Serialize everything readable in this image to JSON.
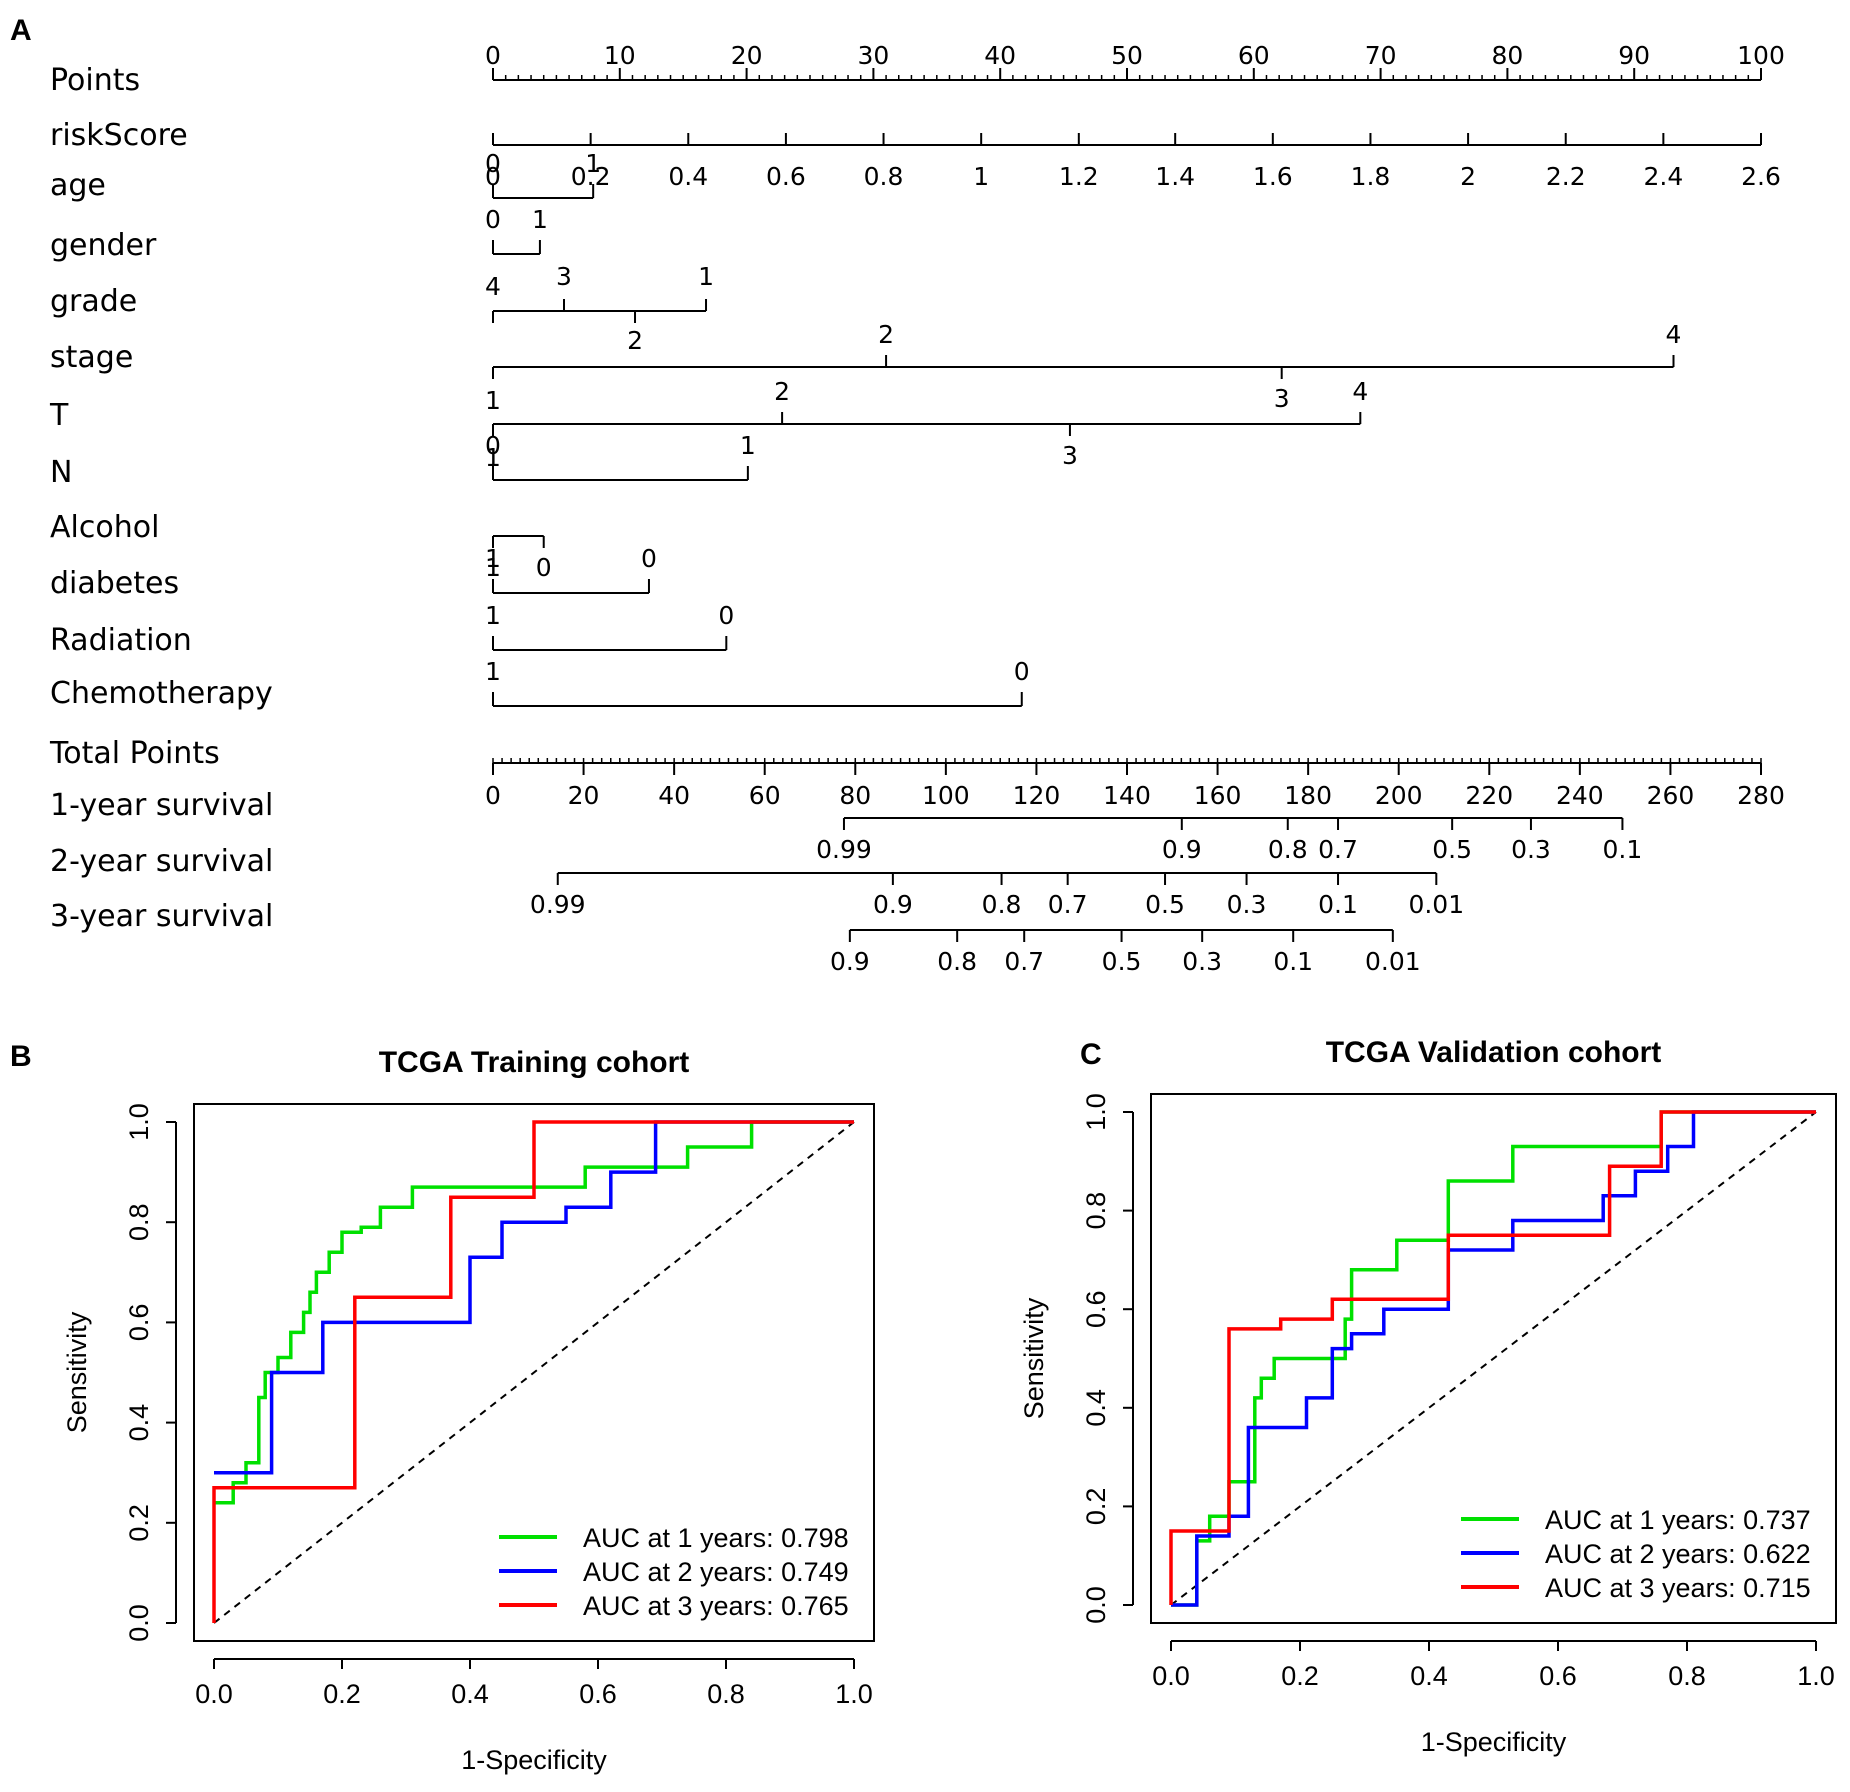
{
  "panels": {
    "a": "A",
    "b": "B",
    "c": "C"
  },
  "chart_data": [
    {
      "type": "nomogram",
      "panel": "A",
      "rows": [
        {
          "key": "points",
          "label": "Points",
          "axis": "points",
          "ticks": [
            {
              "label": "0",
              "points": 0
            },
            {
              "label": "10",
              "points": 10
            },
            {
              "label": "20",
              "points": 20
            },
            {
              "label": "30",
              "points": 30
            },
            {
              "label": "40",
              "points": 40
            },
            {
              "label": "50",
              "points": 50
            },
            {
              "label": "60",
              "points": 60
            },
            {
              "label": "70",
              "points": 70
            },
            {
              "label": "80",
              "points": 80
            },
            {
              "label": "90",
              "points": 90
            },
            {
              "label": "100",
              "points": 100
            }
          ]
        },
        {
          "key": "riskScore",
          "label": "riskScore",
          "ticks": [
            {
              "label": "0",
              "points": 0
            },
            {
              "label": "0.2",
              "points": 7.7
            },
            {
              "label": "0.4",
              "points": 15.4
            },
            {
              "label": "0.6",
              "points": 23.1
            },
            {
              "label": "0.8",
              "points": 30.8
            },
            {
              "label": "1",
              "points": 38.5
            },
            {
              "label": "1.2",
              "points": 46.2
            },
            {
              "label": "1.4",
              "points": 53.8
            },
            {
              "label": "1.6",
              "points": 61.5
            },
            {
              "label": "1.8",
              "points": 69.2
            },
            {
              "label": "2",
              "points": 76.9
            },
            {
              "label": "2.2",
              "points": 84.6
            },
            {
              "label": "2.4",
              "points": 92.3
            },
            {
              "label": "2.6",
              "points": 100
            }
          ]
        },
        {
          "key": "age",
          "label": "age",
          "ticks": [
            {
              "label": "0",
              "points": 0
            },
            {
              "label": "1",
              "points": 7.9
            }
          ]
        },
        {
          "key": "gender",
          "label": "gender",
          "ticks": [
            {
              "label": "0",
              "points": 0
            },
            {
              "label": "1",
              "points": 3.7
            }
          ]
        },
        {
          "key": "grade",
          "label": "grade",
          "ticks": [
            {
              "label": "4",
              "points": 0
            },
            {
              "label": "3",
              "points": 5.6
            },
            {
              "label": "2",
              "points": 11.2
            },
            {
              "label": "1",
              "points": 16.8
            }
          ]
        },
        {
          "key": "stage",
          "label": "stage",
          "ticks": [
            {
              "label": "1",
              "points": 0
            },
            {
              "label": "2",
              "points": 31.0
            },
            {
              "label": "3",
              "points": 62.2
            },
            {
              "label": "4",
              "points": 93.1
            }
          ]
        },
        {
          "key": "T",
          "label": "T",
          "ticks": [
            {
              "label": "1",
              "points": 0
            },
            {
              "label": "2",
              "points": 22.8
            },
            {
              "label": "3",
              "points": 45.5
            },
            {
              "label": "4",
              "points": 68.4
            }
          ]
        },
        {
          "key": "N",
          "label": "N",
          "ticks": [
            {
              "label": "0",
              "points": 0
            },
            {
              "label": "1",
              "points": 20.1
            }
          ]
        },
        {
          "key": "Alcohol",
          "label": "Alcohol",
          "ticks": [
            {
              "label": "1",
              "points": 0
            },
            {
              "label": "0",
              "points": 4.0
            }
          ]
        },
        {
          "key": "diabetes",
          "label": "diabetes",
          "ticks": [
            {
              "label": "1",
              "points": 0
            },
            {
              "label": "0",
              "points": 12.3
            }
          ]
        },
        {
          "key": "Radiation",
          "label": "Radiation",
          "ticks": [
            {
              "label": "1",
              "points": 0
            },
            {
              "label": "0",
              "points": 18.4
            }
          ]
        },
        {
          "key": "Chemotherapy",
          "label": "Chemotherapy",
          "ticks": [
            {
              "label": "1",
              "points": 0
            },
            {
              "label": "0",
              "points": 41.7
            }
          ]
        },
        {
          "key": "total",
          "label": "Total Points",
          "axis": "total",
          "ticks": [
            {
              "label": "0",
              "total": 0
            },
            {
              "label": "20",
              "total": 20
            },
            {
              "label": "40",
              "total": 40
            },
            {
              "label": "60",
              "total": 60
            },
            {
              "label": "80",
              "total": 80
            },
            {
              "label": "100",
              "total": 100
            },
            {
              "label": "120",
              "total": 120
            },
            {
              "label": "140",
              "total": 140
            },
            {
              "label": "160",
              "total": 160
            },
            {
              "label": "180",
              "total": 180
            },
            {
              "label": "200",
              "total": 200
            },
            {
              "label": "220",
              "total": 220
            },
            {
              "label": "240",
              "total": 240
            },
            {
              "label": "260",
              "total": 260
            },
            {
              "label": "280",
              "total": 280
            }
          ]
        },
        {
          "key": "s1",
          "label": "1-year survival",
          "ticks": [
            {
              "label": "0.99",
              "total": 77.5
            },
            {
              "label": "0.9",
              "total": 152.1
            },
            {
              "label": "0.8",
              "total": 175.5
            },
            {
              "label": "0.7",
              "total": 186.6
            },
            {
              "label": "0.5",
              "total": 211.8
            },
            {
              "label": "0.3",
              "total": 229.2
            },
            {
              "label": "0.1",
              "total": 249.4
            }
          ]
        },
        {
          "key": "s2",
          "label": "2-year survival",
          "ticks": [
            {
              "label": "0.99",
              "total": 14.3
            },
            {
              "label": "0.9",
              "total": 88.3
            },
            {
              "label": "0.8",
              "total": 112.3
            },
            {
              "label": "0.7",
              "total": 126.9
            },
            {
              "label": "0.5",
              "total": 148.4
            },
            {
              "label": "0.3",
              "total": 166.4
            },
            {
              "label": "0.1",
              "total": 186.6
            },
            {
              "label": "0.01",
              "total": 208.3
            }
          ]
        },
        {
          "key": "s3",
          "label": "3-year survival",
          "ticks": [
            {
              "label": "0.9",
              "total": 78.8
            },
            {
              "label": "0.8",
              "total": 102.5
            },
            {
              "label": "0.7",
              "total": 117.3
            },
            {
              "label": "0.5",
              "total": 138.8
            },
            {
              "label": "0.3",
              "total": 156.6
            },
            {
              "label": "0.1",
              "total": 176.7
            },
            {
              "label": "0.01",
              "total": 198.7
            }
          ]
        }
      ]
    },
    {
      "type": "line",
      "panel": "B",
      "title": "TCGA  Training  cohort",
      "xlabel": "1-Specificity",
      "ylabel": "Sensitivity",
      "xlim": [
        0,
        1
      ],
      "ylim": [
        0,
        1
      ],
      "xticks": [
        "0.0",
        "0.2",
        "0.4",
        "0.6",
        "0.8",
        "1.0"
      ],
      "yticks": [
        "0.0",
        "0.2",
        "0.4",
        "0.6",
        "0.8",
        "1.0"
      ],
      "legend_position": "bottom-right",
      "diagonal": true,
      "series": [
        {
          "name": "AUC at 1 years: 0.798",
          "color": "#00e000",
          "x": [
            0,
            0.03,
            0.03,
            0.05,
            0.05,
            0.07,
            0.07,
            0.08,
            0.08,
            0.1,
            0.1,
            0.12,
            0.12,
            0.14,
            0.14,
            0.15,
            0.15,
            0.16,
            0.16,
            0.18,
            0.18,
            0.2,
            0.2,
            0.23,
            0.23,
            0.26,
            0.26,
            0.31,
            0.31,
            0.4,
            0.4,
            0.5,
            0.5,
            0.58,
            0.58,
            0.74,
            0.74,
            0.84,
            0.84,
            0.88,
            0.88,
            1.0
          ],
          "y": [
            0.24,
            0.24,
            0.28,
            0.28,
            0.32,
            0.32,
            0.45,
            0.45,
            0.5,
            0.5,
            0.53,
            0.53,
            0.58,
            0.58,
            0.62,
            0.62,
            0.66,
            0.66,
            0.7,
            0.7,
            0.74,
            0.74,
            0.78,
            0.78,
            0.79,
            0.79,
            0.83,
            0.83,
            0.87,
            0.87,
            0.87,
            0.87,
            0.87,
            0.87,
            0.91,
            0.91,
            0.95,
            0.95,
            1.0,
            1.0,
            1.0,
            1.0
          ]
        },
        {
          "name": "AUC at 2 years: 0.749",
          "color": "#0000ff",
          "x": [
            0,
            0.09,
            0.09,
            0.17,
            0.17,
            0.2,
            0.2,
            0.4,
            0.4,
            0.45,
            0.45,
            0.55,
            0.55,
            0.62,
            0.62,
            0.69,
            0.69,
            1.0
          ],
          "y": [
            0.3,
            0.3,
            0.5,
            0.5,
            0.6,
            0.6,
            0.6,
            0.6,
            0.73,
            0.73,
            0.8,
            0.8,
            0.83,
            0.83,
            0.9,
            0.9,
            1.0,
            1.0
          ]
        },
        {
          "name": "AUC at 3 years: 0.765",
          "color": "#ff0000",
          "x": [
            0,
            0,
            0.22,
            0.22,
            0.37,
            0.37,
            0.5,
            0.5,
            1.0
          ],
          "y": [
            0,
            0.27,
            0.27,
            0.65,
            0.65,
            0.85,
            0.85,
            1.0,
            1.0
          ]
        }
      ]
    },
    {
      "type": "line",
      "panel": "C",
      "title": "TCGA  Validation  cohort",
      "xlabel": "1-Specificity",
      "ylabel": "Sensitivity",
      "xlim": [
        0,
        1
      ],
      "ylim": [
        0,
        1
      ],
      "xticks": [
        "0.0",
        "0.2",
        "0.4",
        "0.6",
        "0.8",
        "1.0"
      ],
      "yticks": [
        "0.0",
        "0.2",
        "0.4",
        "0.6",
        "0.8",
        "1.0"
      ],
      "legend_position": "bottom-right",
      "diagonal": true,
      "series": [
        {
          "name": "AUC at 1 years: 0.737",
          "color": "#00e000",
          "x": [
            0,
            0.04,
            0.04,
            0.06,
            0.06,
            0.09,
            0.09,
            0.13,
            0.13,
            0.14,
            0.14,
            0.16,
            0.16,
            0.27,
            0.27,
            0.28,
            0.28,
            0.35,
            0.35,
            0.43,
            0.43,
            0.53,
            0.53,
            0.76,
            0.76,
            1.0
          ],
          "y": [
            0,
            0,
            0.13,
            0.13,
            0.18,
            0.18,
            0.25,
            0.25,
            0.42,
            0.42,
            0.46,
            0.46,
            0.5,
            0.5,
            0.58,
            0.58,
            0.68,
            0.68,
            0.74,
            0.74,
            0.86,
            0.86,
            0.93,
            0.93,
            1.0,
            1.0
          ]
        },
        {
          "name": "AUC at 2 years: 0.622",
          "color": "#0000ff",
          "x": [
            0,
            0.04,
            0.04,
            0.09,
            0.09,
            0.12,
            0.12,
            0.21,
            0.21,
            0.25,
            0.25,
            0.28,
            0.28,
            0.33,
            0.33,
            0.43,
            0.43,
            0.53,
            0.53,
            0.67,
            0.67,
            0.72,
            0.72,
            0.77,
            0.77,
            0.81,
            0.81,
            1.0
          ],
          "y": [
            0,
            0,
            0.14,
            0.14,
            0.18,
            0.18,
            0.36,
            0.36,
            0.42,
            0.42,
            0.52,
            0.52,
            0.55,
            0.55,
            0.6,
            0.6,
            0.72,
            0.72,
            0.78,
            0.78,
            0.83,
            0.83,
            0.88,
            0.88,
            0.93,
            0.93,
            1.0,
            1.0
          ]
        },
        {
          "name": "AUC at 3 years: 0.715",
          "color": "#ff0000",
          "x": [
            0,
            0,
            0.09,
            0.09,
            0.17,
            0.17,
            0.25,
            0.25,
            0.43,
            0.43,
            0.68,
            0.68,
            0.76,
            0.76,
            1.0
          ],
          "y": [
            0,
            0.15,
            0.15,
            0.56,
            0.56,
            0.58,
            0.58,
            0.62,
            0.62,
            0.75,
            0.75,
            0.89,
            0.89,
            1.0,
            1.0
          ]
        }
      ]
    }
  ]
}
